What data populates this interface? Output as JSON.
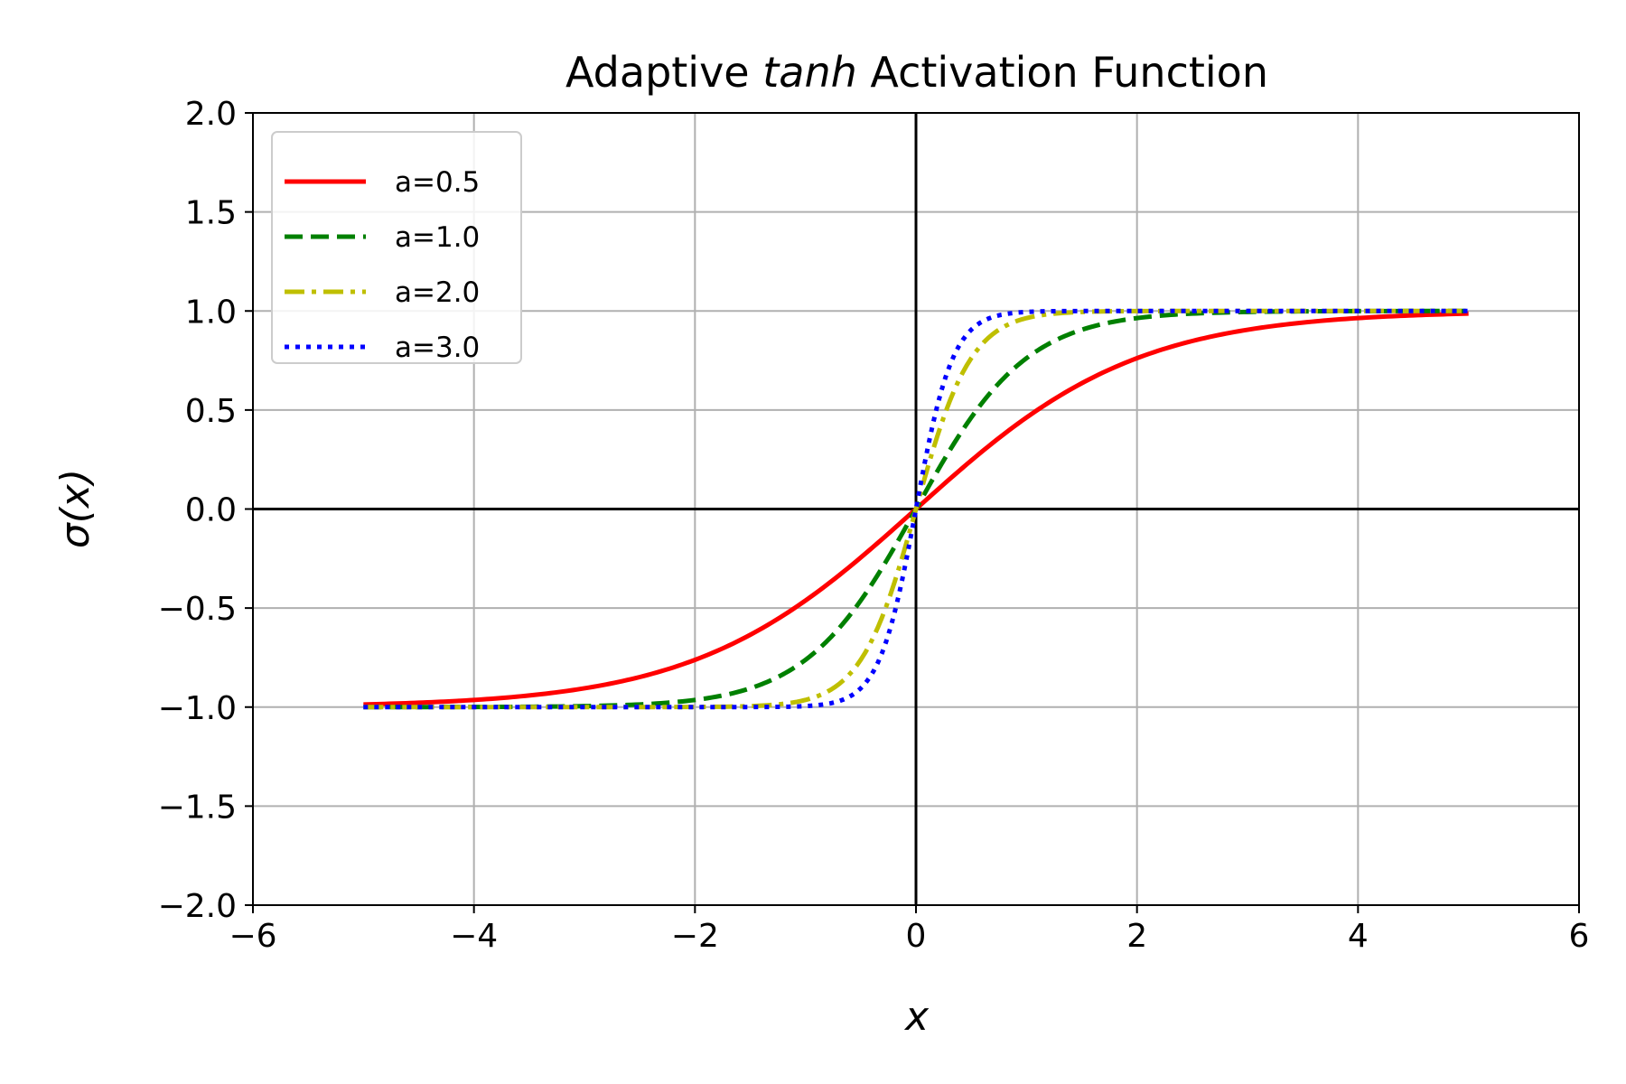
{
  "chart_data": {
    "type": "line",
    "title": {
      "before": "Adaptive ",
      "italic": "tanh",
      "after": " Activation Function"
    },
    "xlabel": "x",
    "ylabel": "σ(x)",
    "xlim": [
      -6,
      6
    ],
    "ylim": [
      -2.0,
      2.0
    ],
    "xticks": [
      -6,
      -4,
      -2,
      0,
      2,
      4,
      6
    ],
    "xtick_labels": [
      "−6",
      "−4",
      "−2",
      "0",
      "2",
      "4",
      "6"
    ],
    "yticks": [
      -2.0,
      -1.5,
      -1.0,
      -0.5,
      0.0,
      0.5,
      1.0,
      1.5,
      2.0
    ],
    "ytick_labels": [
      "−2.0",
      "−1.5",
      "−1.0",
      "−0.5",
      "0.0",
      "0.5",
      "1.0",
      "1.5",
      "2.0"
    ],
    "grid": true,
    "reference_lines": {
      "x": 0,
      "y": 0
    },
    "legend_position": "top-left",
    "function": "tanh(a·x)",
    "x_domain": [
      -5,
      5
    ],
    "series": [
      {
        "name": "a=0.5",
        "a": 0.5,
        "color": "#ff0000",
        "style": "solid",
        "x": [
          -5,
          -4,
          -3,
          -2,
          -1,
          0,
          1,
          2,
          3,
          4,
          5
        ],
        "y": [
          -0.987,
          -0.964,
          -0.905,
          -0.762,
          -0.462,
          0.0,
          0.462,
          0.762,
          0.905,
          0.964,
          0.987
        ]
      },
      {
        "name": "a=1.0",
        "a": 1.0,
        "color": "#008000",
        "style": "dashed",
        "x": [
          -5,
          -4,
          -3,
          -2,
          -1,
          -0.5,
          0,
          0.5,
          1,
          2,
          3,
          4,
          5
        ],
        "y": [
          -1.0,
          -0.999,
          -0.995,
          -0.964,
          -0.762,
          -0.462,
          0.0,
          0.462,
          0.762,
          0.964,
          0.995,
          0.999,
          1.0
        ]
      },
      {
        "name": "a=2.0",
        "a": 2.0,
        "color": "#bfbf00",
        "style": "dashdot",
        "x": [
          -5,
          -3,
          -2,
          -1,
          -0.5,
          -0.25,
          0,
          0.25,
          0.5,
          1,
          2,
          3,
          5
        ],
        "y": [
          -1.0,
          -1.0,
          -0.999,
          -0.964,
          -0.762,
          -0.462,
          0.0,
          0.462,
          0.762,
          0.964,
          0.999,
          1.0,
          1.0
        ]
      },
      {
        "name": "a=3.0",
        "a": 3.0,
        "color": "#0000ff",
        "style": "dotted",
        "x": [
          -5,
          -2,
          -1,
          -0.5,
          -0.25,
          0,
          0.25,
          0.5,
          1,
          2,
          5
        ],
        "y": [
          -1.0,
          -1.0,
          -0.995,
          -0.905,
          -0.635,
          0.0,
          0.635,
          0.905,
          0.995,
          1.0,
          1.0
        ]
      }
    ]
  }
}
